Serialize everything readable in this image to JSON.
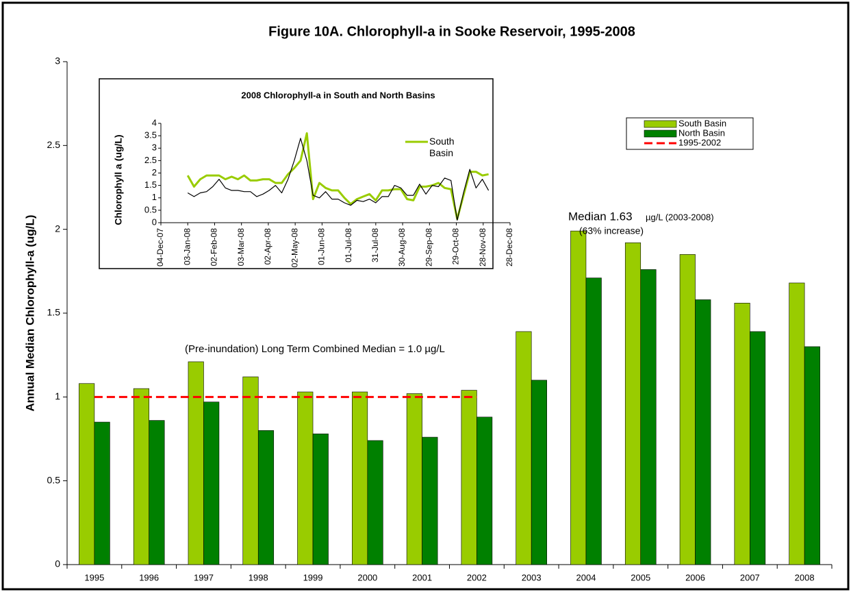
{
  "chart_data": [
    {
      "type": "bar",
      "title": "Figure 10A.  Chlorophyll-a in Sooke Reservoir, 1995-2008",
      "y_label": "Annual Median Chlorophyll-a (ug/L)",
      "categories": [
        "1995",
        "1996",
        "1997",
        "1998",
        "1999",
        "2000",
        "2001",
        "2002",
        "2003",
        "2004",
        "2005",
        "2006",
        "2007",
        "2008"
      ],
      "series": [
        {
          "name": "South Basin",
          "color": "#99cc00",
          "values": [
            1.08,
            1.05,
            1.21,
            1.12,
            1.03,
            1.03,
            1.02,
            1.04,
            1.39,
            1.99,
            1.92,
            1.85,
            1.56,
            1.68
          ]
        },
        {
          "name": "North Basin",
          "color": "#008000",
          "values": [
            0.85,
            0.86,
            0.97,
            0.8,
            0.78,
            0.74,
            0.76,
            0.88,
            1.1,
            1.71,
            1.76,
            1.58,
            1.39,
            1.3
          ]
        },
        {
          "name": "1995-2002",
          "color": "#ff0000",
          "type": "line",
          "dashed": true,
          "values": [
            1,
            1,
            1,
            1,
            1,
            1,
            1,
            1,
            null,
            null,
            null,
            null,
            null,
            null
          ]
        }
      ],
      "ylim": [
        0,
        3
      ],
      "yticks": [
        0,
        0.5,
        1,
        1.5,
        2,
        2.5,
        3
      ],
      "legend": "upper right",
      "annotations": [
        "(Pre-inundation) Long Term Combined Median = 1.0 µg/L",
        "Median 1.63",
        "µg/L (2003-2008)",
        "(63% increase)"
      ]
    },
    {
      "type": "line",
      "title": "2008 Chlorophyll-a in South and North Basins",
      "y_label": "Chlorophyll a (ug/L)",
      "x": [
        "2008-01-03",
        "2008-01-10",
        "2008-01-17",
        "2008-01-24",
        "2008-01-31",
        "2008-02-07",
        "2008-02-14",
        "2008-02-21",
        "2008-02-28",
        "2008-03-06",
        "2008-03-13",
        "2008-03-20",
        "2008-03-27",
        "2008-04-03",
        "2008-04-10",
        "2008-04-17",
        "2008-04-24",
        "2008-05-01",
        "2008-05-08",
        "2008-05-15",
        "2008-05-22",
        "2008-05-29",
        "2008-06-05",
        "2008-06-12",
        "2008-06-19",
        "2008-06-26",
        "2008-07-03",
        "2008-07-10",
        "2008-07-17",
        "2008-07-24",
        "2008-07-31",
        "2008-08-07",
        "2008-08-14",
        "2008-08-21",
        "2008-08-28",
        "2008-09-04",
        "2008-09-11",
        "2008-09-18",
        "2008-09-25",
        "2008-10-02",
        "2008-10-09",
        "2008-10-16",
        "2008-10-23",
        "2008-10-30",
        "2008-11-06",
        "2008-11-13",
        "2008-11-20",
        "2008-11-27",
        "2008-12-04"
      ],
      "series": [
        {
          "name": "South Basin",
          "color": "#99cc00",
          "width": 3,
          "values": [
            1.9,
            1.45,
            1.75,
            1.9,
            1.9,
            1.9,
            1.75,
            1.85,
            1.75,
            1.9,
            1.7,
            1.7,
            1.75,
            1.75,
            1.6,
            1.6,
            1.95,
            2.2,
            2.5,
            3.6,
            0.95,
            1.6,
            1.4,
            1.3,
            1.3,
            1.0,
            0.75,
            0.95,
            1.05,
            1.15,
            0.9,
            1.3,
            1.3,
            1.35,
            1.35,
            0.95,
            0.9,
            1.45,
            1.45,
            1.5,
            1.6,
            1.4,
            1.35,
            0.15,
            1.1,
            2.05,
            2.05,
            1.9,
            1.95
          ]
        },
        {
          "color": "#000000",
          "width": 1.2,
          "values": [
            1.2,
            1.05,
            1.2,
            1.25,
            1.45,
            1.75,
            1.4,
            1.3,
            1.3,
            1.25,
            1.25,
            1.05,
            1.15,
            1.3,
            1.5,
            1.2,
            1.75,
            2.5,
            3.4,
            2.5,
            1.1,
            1.0,
            1.25,
            0.95,
            0.95,
            0.8,
            0.7,
            0.9,
            0.85,
            0.95,
            0.8,
            1.05,
            1.05,
            1.5,
            1.4,
            1.1,
            1.1,
            1.55,
            1.15,
            1.5,
            1.45,
            1.8,
            1.7,
            0.1,
            1.2,
            2.15,
            1.4,
            1.75,
            1.3
          ]
        }
      ],
      "xlim": [
        "2007-12-04",
        "2008-12-28"
      ],
      "xticks": [
        {
          "value": "2007-12-04",
          "label": "04-Dec-07"
        },
        {
          "value": "2008-01-03",
          "label": "03-Jan-08"
        },
        {
          "value": "2008-02-02",
          "label": "02-Feb-08"
        },
        {
          "value": "2008-03-03",
          "label": "03-Mar-08"
        },
        {
          "value": "2008-04-02",
          "label": "02-Apr-08"
        },
        {
          "value": "2008-05-02",
          "label": "02-May-08"
        },
        {
          "value": "2008-06-01",
          "label": "01-Jun-08"
        },
        {
          "value": "2008-07-01",
          "label": "01-Jul-08"
        },
        {
          "value": "2008-07-31",
          "label": "31-Jul-08"
        },
        {
          "value": "2008-08-30",
          "label": "30-Aug-08"
        },
        {
          "value": "2008-09-29",
          "label": "29-Sep-08"
        },
        {
          "value": "2008-10-29",
          "label": "29-Oct-08"
        },
        {
          "value": "2008-11-28",
          "label": "28-Nov-08"
        },
        {
          "value": "2008-12-28",
          "label": "28-Dec-08"
        }
      ],
      "ylim": [
        0,
        4
      ],
      "yticks": [
        0,
        0.5,
        1,
        1.5,
        2,
        2.5,
        3,
        3.5,
        4
      ],
      "legend": "upper right"
    }
  ]
}
